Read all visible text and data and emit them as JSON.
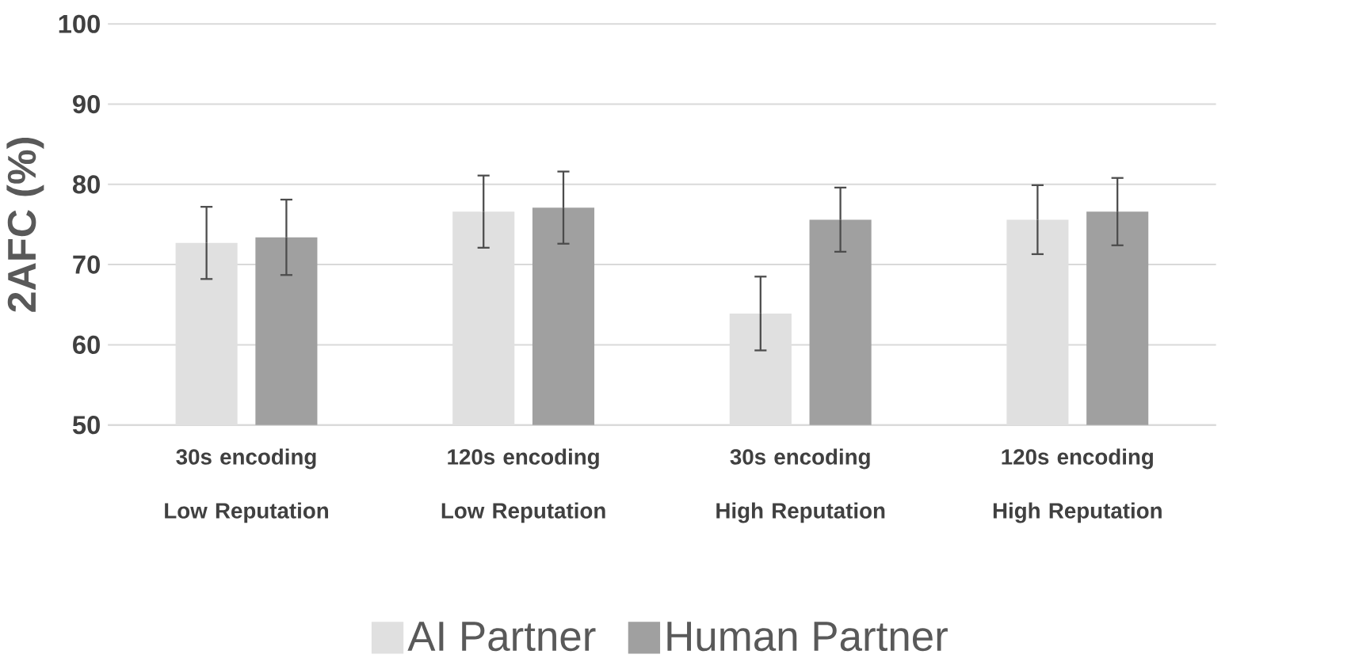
{
  "chart_data": {
    "type": "bar",
    "ylabel": "2AFC (%)",
    "categories": [
      "30s encoding Low Reputation",
      "120s encoding Low Reputation",
      "30s encoding High Reputation",
      "120s encoding High Reputation"
    ],
    "series": [
      {
        "name": "AI Partner",
        "color": "#e0e0e0",
        "values": [
          72.7,
          76.6,
          63.9,
          75.6
        ],
        "errors": [
          4.5,
          4.5,
          4.6,
          4.3
        ]
      },
      {
        "name": "Human Partner",
        "color": "#a0a0a0",
        "values": [
          73.4,
          77.1,
          75.6,
          76.6
        ],
        "errors": [
          4.7,
          4.5,
          4.0,
          4.2
        ]
      }
    ],
    "ylim": [
      50,
      100
    ],
    "yticks": [
      50,
      60,
      70,
      80,
      90,
      100
    ],
    "grid": "y",
    "legend": "bottom"
  }
}
